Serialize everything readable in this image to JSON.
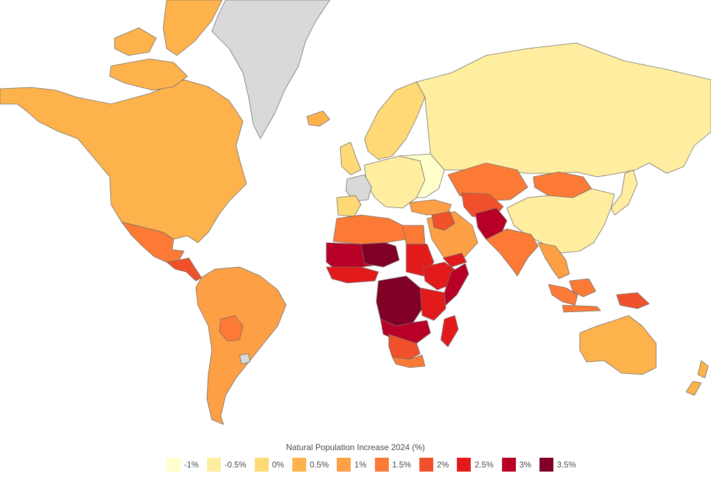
{
  "legend": {
    "title": "Natural Population Increase 2024 (%)",
    "items": [
      {
        "label": "-1%",
        "color": "#ffffcc"
      },
      {
        "label": "-0.5%",
        "color": "#ffeda0"
      },
      {
        "label": "0%",
        "color": "#fed976"
      },
      {
        "label": "0.5%",
        "color": "#feb24c"
      },
      {
        "label": "1%",
        "color": "#fd9f44"
      },
      {
        "label": "1.5%",
        "color": "#fc7a35"
      },
      {
        "label": "2%",
        "color": "#f0502a"
      },
      {
        "label": "2.5%",
        "color": "#e31a1c"
      },
      {
        "label": "3%",
        "color": "#b80026"
      },
      {
        "label": "3.5%",
        "color": "#800026"
      }
    ]
  },
  "no_data_color": "#d9d9d9",
  "regions": [
    {
      "name": "north-america",
      "level": "0.5%"
    },
    {
      "name": "greenland",
      "level": "no-data"
    },
    {
      "name": "canadian-islands",
      "level": "0.5%"
    },
    {
      "name": "mexico",
      "level": "1.5%"
    },
    {
      "name": "central-america",
      "level": "2%"
    },
    {
      "name": "south-america",
      "level": "1%"
    },
    {
      "name": "bolivia",
      "level": "1.5%"
    },
    {
      "name": "uruguay",
      "level": "no-data"
    },
    {
      "name": "iceland",
      "level": "0.5%"
    },
    {
      "name": "scandinavia",
      "level": "0%"
    },
    {
      "name": "uk-ireland",
      "level": "0%"
    },
    {
      "name": "western-europe",
      "level": "-0.5%"
    },
    {
      "name": "france",
      "level": "no-data"
    },
    {
      "name": "eastern-europe",
      "level": "-1%"
    },
    {
      "name": "iberia",
      "level": "0%"
    },
    {
      "name": "russia",
      "level": "-0.5%"
    },
    {
      "name": "kazakhstan",
      "level": "1.5%"
    },
    {
      "name": "mongolia",
      "level": "1.5%"
    },
    {
      "name": "china",
      "level": "-0.5%"
    },
    {
      "name": "turkey",
      "level": "1%"
    },
    {
      "name": "middle-east",
      "level": "1%"
    },
    {
      "name": "iraq",
      "level": "2%"
    },
    {
      "name": "central-asia",
      "level": "2%"
    },
    {
      "name": "afghanistan",
      "level": "3%"
    },
    {
      "name": "south-asia",
      "level": "1.5%"
    },
    {
      "name": "southeast-asia",
      "level": "1%"
    },
    {
      "name": "indonesia",
      "level": "1.5%"
    },
    {
      "name": "papua-new-guinea",
      "level": "2%"
    },
    {
      "name": "japan",
      "level": "-0.5%"
    },
    {
      "name": "australia",
      "level": "0.5%"
    },
    {
      "name": "new-zealand",
      "level": "0.5%"
    },
    {
      "name": "north-africa",
      "level": "1.5%"
    },
    {
      "name": "egypt",
      "level": "1.5%"
    },
    {
      "name": "sahel",
      "level": "3%"
    },
    {
      "name": "niger-chad",
      "level": "3.5%"
    },
    {
      "name": "west-africa-coast",
      "level": "2.5%"
    },
    {
      "name": "sudan",
      "level": "2.5%"
    },
    {
      "name": "horn-of-africa",
      "level": "2.5%"
    },
    {
      "name": "somalia",
      "level": "3%"
    },
    {
      "name": "yemen",
      "level": "2.5%"
    },
    {
      "name": "central-africa",
      "level": "3.5%"
    },
    {
      "name": "east-africa",
      "level": "2.5%"
    },
    {
      "name": "angola-mozambique",
      "level": "3%"
    },
    {
      "name": "southern-africa-mid",
      "level": "2%"
    },
    {
      "name": "south-africa",
      "level": "1.5%"
    },
    {
      "name": "madagascar",
      "level": "2.5%"
    }
  ]
}
